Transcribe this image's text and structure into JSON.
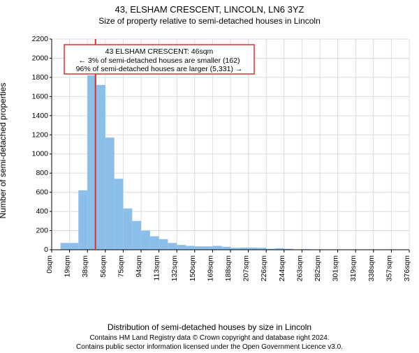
{
  "title": "43, ELSHAM CRESCENT, LINCOLN, LN6 3YZ",
  "subtitle": "Size of property relative to semi-detached houses in Lincoln",
  "ylabel": "Number of semi-detached properties",
  "xlabel": "Distribution of semi-detached houses by size in Lincoln",
  "footer_line1": "Contains HM Land Registry data © Crown copyright and database right 2024.",
  "footer_line2": "Contains public sector information licensed under the Open Government Licence v3.0.",
  "chart": {
    "type": "histogram",
    "bar_color": "#8cbeea",
    "grid_color": "#dcdcdc",
    "marker_color": "#d9322b",
    "background_color": "#ffffff",
    "ylim": [
      0,
      2200
    ],
    "ytick_step": 200,
    "xlabels": [
      "0sqm",
      "19sqm",
      "38sqm",
      "56sqm",
      "75sqm",
      "94sqm",
      "113sqm",
      "132sqm",
      "150sqm",
      "169sqm",
      "188sqm",
      "207sqm",
      "226sqm",
      "244sqm",
      "263sqm",
      "282sqm",
      "301sqm",
      "319sqm",
      "338sqm",
      "357sqm",
      "376sqm"
    ],
    "bar_halves": [
      0,
      70,
      70,
      620,
      1820,
      1720,
      1170,
      740,
      430,
      300,
      200,
      140,
      110,
      70,
      50,
      40,
      35,
      35,
      40,
      30,
      20,
      22,
      22,
      20,
      10,
      15,
      10,
      0,
      5,
      0,
      0,
      0,
      0,
      0,
      0,
      0,
      0,
      0,
      0,
      0
    ],
    "marker_bin_index": 2.45,
    "legend": {
      "line1": "43 ELSHAM CRESCENT: 46sqm",
      "line2": "← 3% of semi-detached houses are smaller (162)",
      "line3": "96% of semi-detached houses are larger (5,331) →"
    },
    "title_fontsize": 13,
    "label_fontsize": 12,
    "tick_fontsize": 10.5
  }
}
